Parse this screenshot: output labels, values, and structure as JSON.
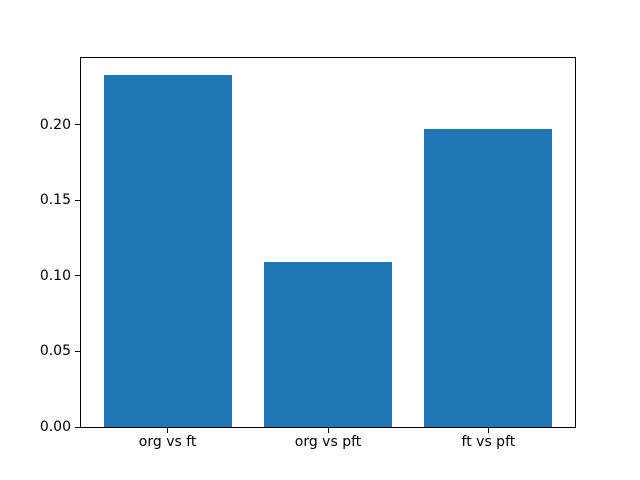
{
  "chart_data": {
    "type": "bar",
    "title": "",
    "xlabel": "",
    "ylabel": "",
    "categories": [
      "org vs ft",
      "org vs pft",
      "ft vs pft"
    ],
    "values": [
      0.233,
      0.109,
      0.197
    ],
    "bar_width": 0.8,
    "bar_color": "#1f77b4",
    "xlim": [
      -0.54,
      2.54
    ],
    "ylim": [
      0,
      0.244
    ],
    "yticks": [
      0,
      0.05,
      0.1,
      0.15,
      0.2
    ],
    "ytick_labels": [
      "0.00",
      "0.05",
      "0.10",
      "0.15",
      "0.20"
    ],
    "grid": false,
    "legend": null,
    "background": "#ffffff",
    "spine_color": "#000000"
  }
}
